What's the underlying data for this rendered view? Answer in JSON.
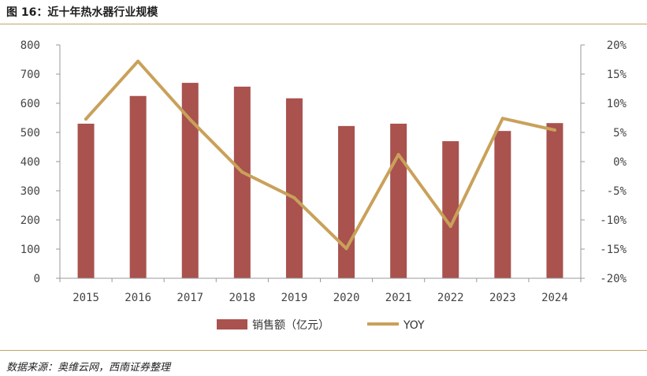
{
  "figure": {
    "title": "图 16：近十年热水器行业规模",
    "source": "数据来源：奥维云网，西南证券整理"
  },
  "colors": {
    "bar": "#a9524e",
    "line": "#c9a15a",
    "rule": "#c5a46a",
    "axis": "#999999"
  },
  "chart_data": {
    "type": "bar",
    "categories": [
      "2015",
      "2016",
      "2017",
      "2018",
      "2019",
      "2020",
      "2021",
      "2022",
      "2023",
      "2024"
    ],
    "series": [
      {
        "name": "销售额（亿元）",
        "type": "bar",
        "axis": "left",
        "values": [
          530,
          625,
          670,
          657,
          617,
          522,
          530,
          470,
          505,
          532
        ]
      },
      {
        "name": "YOY",
        "type": "line",
        "axis": "right",
        "values": [
          7.3,
          17.2,
          7.2,
          -1.8,
          -6.2,
          -14.9,
          1.2,
          -11.1,
          7.4,
          5.4
        ]
      }
    ],
    "y_left": {
      "min": 0,
      "max": 800,
      "step": 100,
      "tick_labels": [
        "0",
        "100",
        "200",
        "300",
        "400",
        "500",
        "600",
        "700",
        "800"
      ]
    },
    "y_right": {
      "min": -20,
      "max": 20,
      "step": 5,
      "tick_labels": [
        "-20%",
        "-15%",
        "-10%",
        "-5%",
        "0%",
        "5%",
        "10%",
        "15%",
        "20%"
      ]
    },
    "grid": false,
    "legend_position": "bottom"
  }
}
